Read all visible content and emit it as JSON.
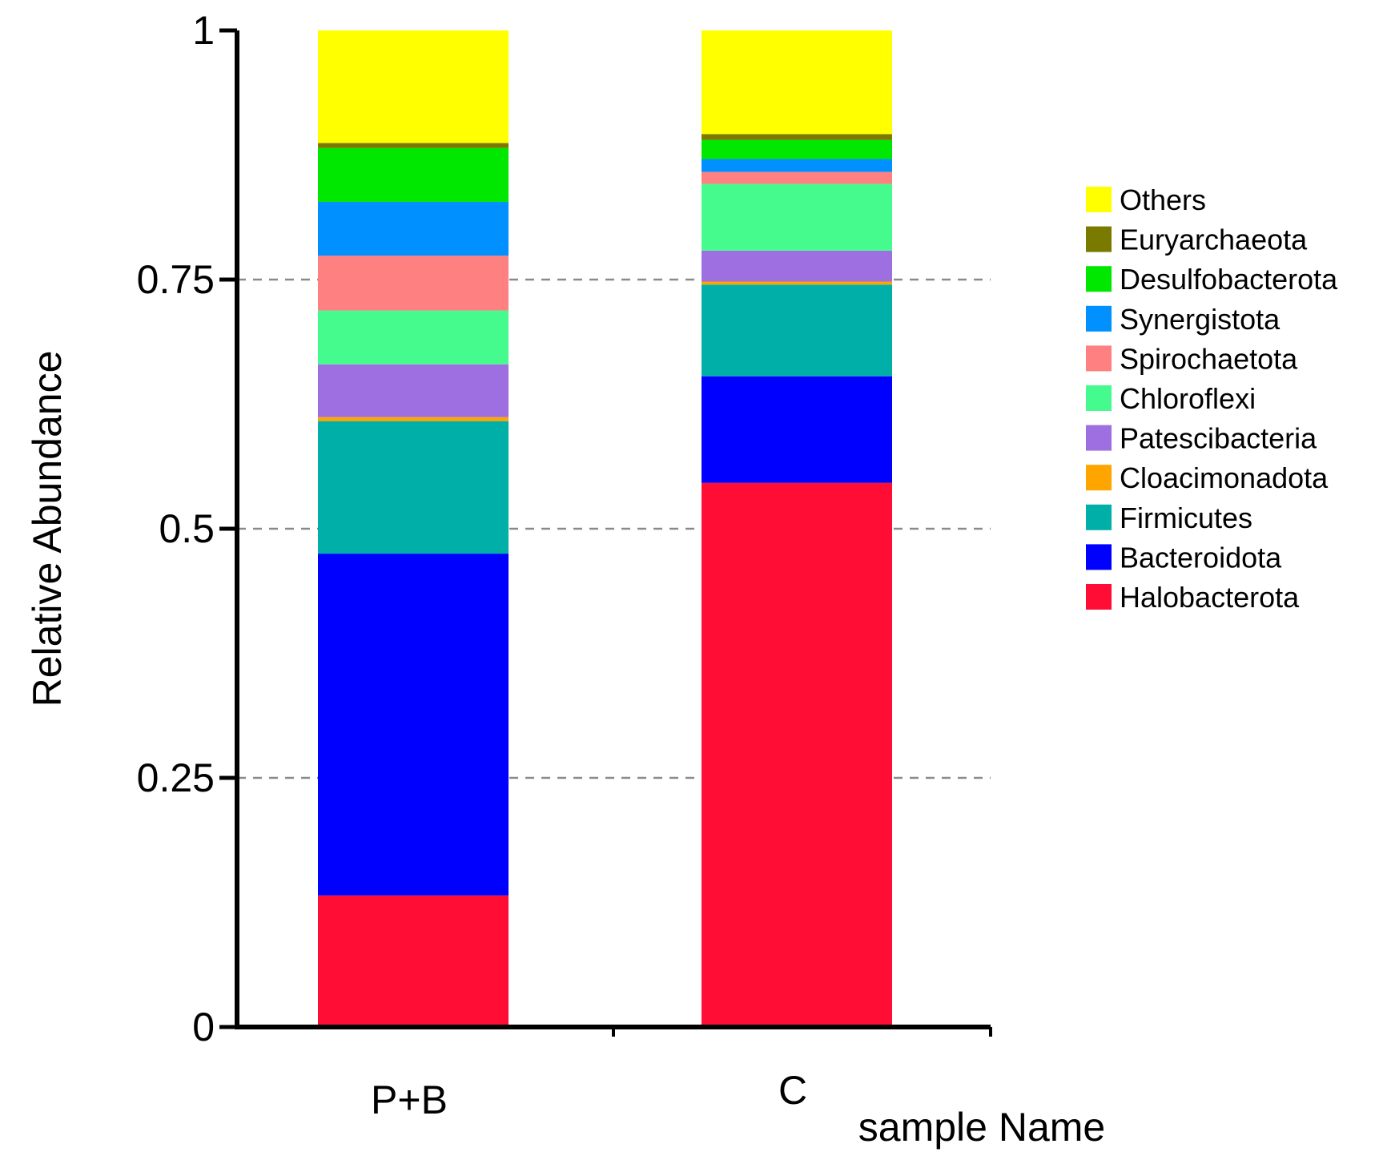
{
  "chart_data": {
    "type": "bar",
    "stacked": true,
    "categories": [
      "P+B",
      "C"
    ],
    "series": [
      {
        "name": "Halobacterota",
        "color": "#FF0D35",
        "values": [
          0.132,
          0.546
        ]
      },
      {
        "name": "Bacteroidota",
        "color": "#0000FF",
        "values": [
          0.343,
          0.107
        ]
      },
      {
        "name": "Firmicutes",
        "color": "#00B0A8",
        "values": [
          0.133,
          0.092
        ]
      },
      {
        "name": "Cloacimonadota",
        "color": "#FFA500",
        "values": [
          0.004,
          0.003
        ]
      },
      {
        "name": "Patescibacteria",
        "color": "#9E6FE0",
        "values": [
          0.053,
          0.031
        ]
      },
      {
        "name": "Chloroflexi",
        "color": "#46FB8D",
        "values": [
          0.054,
          0.067
        ]
      },
      {
        "name": "Spirochaetota",
        "color": "#FF8080",
        "values": [
          0.055,
          0.012
        ]
      },
      {
        "name": "Synergistota",
        "color": "#0090FF",
        "values": [
          0.054,
          0.013
        ]
      },
      {
        "name": "Desulfobacterota",
        "color": "#00E800",
        "values": [
          0.054,
          0.019
        ]
      },
      {
        "name": "Euryarchaeota",
        "color": "#7A7A00",
        "values": [
          0.005,
          0.006
        ]
      },
      {
        "name": "Others",
        "color": "#FFFF00",
        "values": [
          0.113,
          0.104
        ]
      }
    ],
    "legend_order": [
      "Others",
      "Euryarchaeota",
      "Desulfobacterota",
      "Synergistota",
      "Spirochaetota",
      "Chloroflexi",
      "Patescibacteria",
      "Cloacimonadota",
      "Firmicutes",
      "Bacteroidota",
      "Halobacterota"
    ],
    "xlabel": "sample Name",
    "ylabel": "Relative Abundance",
    "ylim": [
      0,
      1
    ],
    "yticks": [
      0,
      0.25,
      0.5,
      0.75,
      1
    ],
    "ytick_labels": [
      "0",
      "0.25",
      "0.5",
      "0.75",
      "1"
    ],
    "grid": "horizontal dashed",
    "legend_position": "right"
  }
}
